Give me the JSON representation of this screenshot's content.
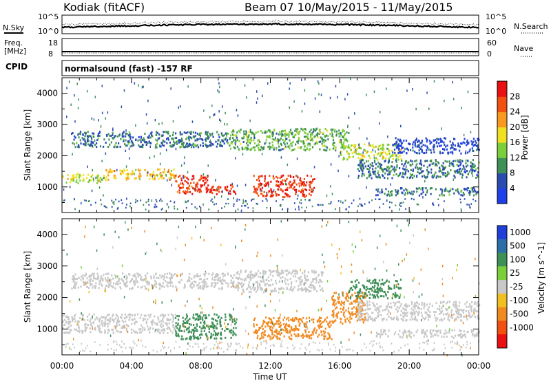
{
  "header": {
    "left": "Kodiak (fitACF)",
    "right": "Beam 07 10/May/2015 - 11/May/2015"
  },
  "strip": {
    "nsky_label": "N.Sky",
    "nsky_top": "10^5",
    "nsky_bottom": "10^0",
    "nsearch_label": "N.Search",
    "nsearch_top": "10^5",
    "nsearch_bottom": "10^0",
    "freq_label_1": "Freq.",
    "freq_label_2": "[MHz]",
    "freq_top": "18",
    "freq_bottom": "8",
    "nave_label": "Nave",
    "nave_top": "60",
    "nave_bottom": "0",
    "cpid_label": "CPID",
    "cpid_text": "normalsound (fast) -157 RF"
  },
  "axes": {
    "ylabel": "Slant Range [km]",
    "xlabel": "Time UT",
    "yticks": [
      "1000",
      "2000",
      "3000",
      "4000"
    ],
    "xticks": [
      "00:00",
      "04:00",
      "08:00",
      "12:00",
      "16:00",
      "20:00",
      "00:00"
    ]
  },
  "chart_data": [
    {
      "type": "heatmap",
      "name": "power",
      "xlabel": "Time UT",
      "ylabel": "Slant Range [km]",
      "xlim": [
        0,
        24
      ],
      "ylim": [
        180,
        4500
      ],
      "colorbar_label": "Power [dB]",
      "colorbar_ticks": [
        "4",
        "8",
        "12",
        "16",
        "20",
        "24",
        "28"
      ],
      "colorbar_colors": [
        "#1f3fe8",
        "#2a4bb0",
        "#3f8f57",
        "#7ccf3a",
        "#f0e020",
        "#f89a20",
        "#f25010",
        "#e81010"
      ],
      "bands": [
        {
          "start_h": 0.0,
          "end_h": 2.5,
          "range_km": [
            1150,
            1450
          ],
          "level": 16
        },
        {
          "start_h": 2.5,
          "end_h": 6.5,
          "range_km": [
            1250,
            1600
          ],
          "level": 20
        },
        {
          "start_h": 6.5,
          "end_h": 8.5,
          "range_km": [
            800,
            1400
          ],
          "level": 28
        },
        {
          "start_h": 8.5,
          "end_h": 10.0,
          "range_km": [
            800,
            1100
          ],
          "level": 28
        },
        {
          "start_h": 11.0,
          "end_h": 14.5,
          "range_km": [
            700,
            1400
          ],
          "level": 28
        },
        {
          "start_h": 0.5,
          "end_h": 9.5,
          "range_km": [
            2300,
            2800
          ],
          "level": 8
        },
        {
          "start_h": 9.5,
          "end_h": 16.5,
          "range_km": [
            2200,
            2900
          ],
          "level": 12
        },
        {
          "start_h": 16.0,
          "end_h": 19.5,
          "range_km": [
            1900,
            2400
          ],
          "level": 16
        },
        {
          "start_h": 17.0,
          "end_h": 24.0,
          "range_km": [
            1300,
            1900
          ],
          "level": 8
        },
        {
          "start_h": 19.0,
          "end_h": 24.0,
          "range_km": [
            2100,
            2600
          ],
          "level": 4
        },
        {
          "start_h": 18.0,
          "end_h": 24.0,
          "range_km": [
            750,
            1000
          ],
          "level": 8
        }
      ]
    },
    {
      "type": "heatmap",
      "name": "velocity",
      "xlabel": "Time UT",
      "ylabel": "Slant Range [km]",
      "xlim": [
        0,
        24
      ],
      "ylim": [
        180,
        4500
      ],
      "colorbar_label": "Velocity [m s^-1]",
      "colorbar_ticks": [
        "1000",
        "500",
        "100",
        "25",
        "-25",
        "-100",
        "-500",
        "-1000"
      ],
      "colorbar_colors": [
        "#1f3fd8",
        "#2c6ea8",
        "#3f8f57",
        "#7ccf3a",
        "#c8c8c8",
        "#f0c020",
        "#f08a20",
        "#f05010",
        "#e81010"
      ],
      "bands": [
        {
          "start_h": 0.0,
          "end_h": 6.5,
          "range_km": [
            900,
            1500
          ],
          "level": 0
        },
        {
          "start_h": 0.5,
          "end_h": 10.0,
          "range_km": [
            2300,
            2800
          ],
          "level": 0
        },
        {
          "start_h": 6.5,
          "end_h": 10.0,
          "range_km": [
            700,
            1500
          ],
          "level": 100
        },
        {
          "start_h": 11.0,
          "end_h": 15.5,
          "range_km": [
            700,
            1400
          ],
          "level": -100
        },
        {
          "start_h": 15.5,
          "end_h": 17.5,
          "range_km": [
            1200,
            2200
          ],
          "level": -100
        },
        {
          "start_h": 16.5,
          "end_h": 19.5,
          "range_km": [
            2000,
            2600
          ],
          "level": 100
        },
        {
          "start_h": 17.0,
          "end_h": 24.0,
          "range_km": [
            1300,
            1900
          ],
          "level": 0
        },
        {
          "start_h": 18.0,
          "end_h": 24.0,
          "range_km": [
            750,
            1000
          ],
          "level": 0
        },
        {
          "start_h": 10.0,
          "end_h": 15.0,
          "range_km": [
            2200,
            2900
          ],
          "level": 0
        }
      ]
    }
  ]
}
